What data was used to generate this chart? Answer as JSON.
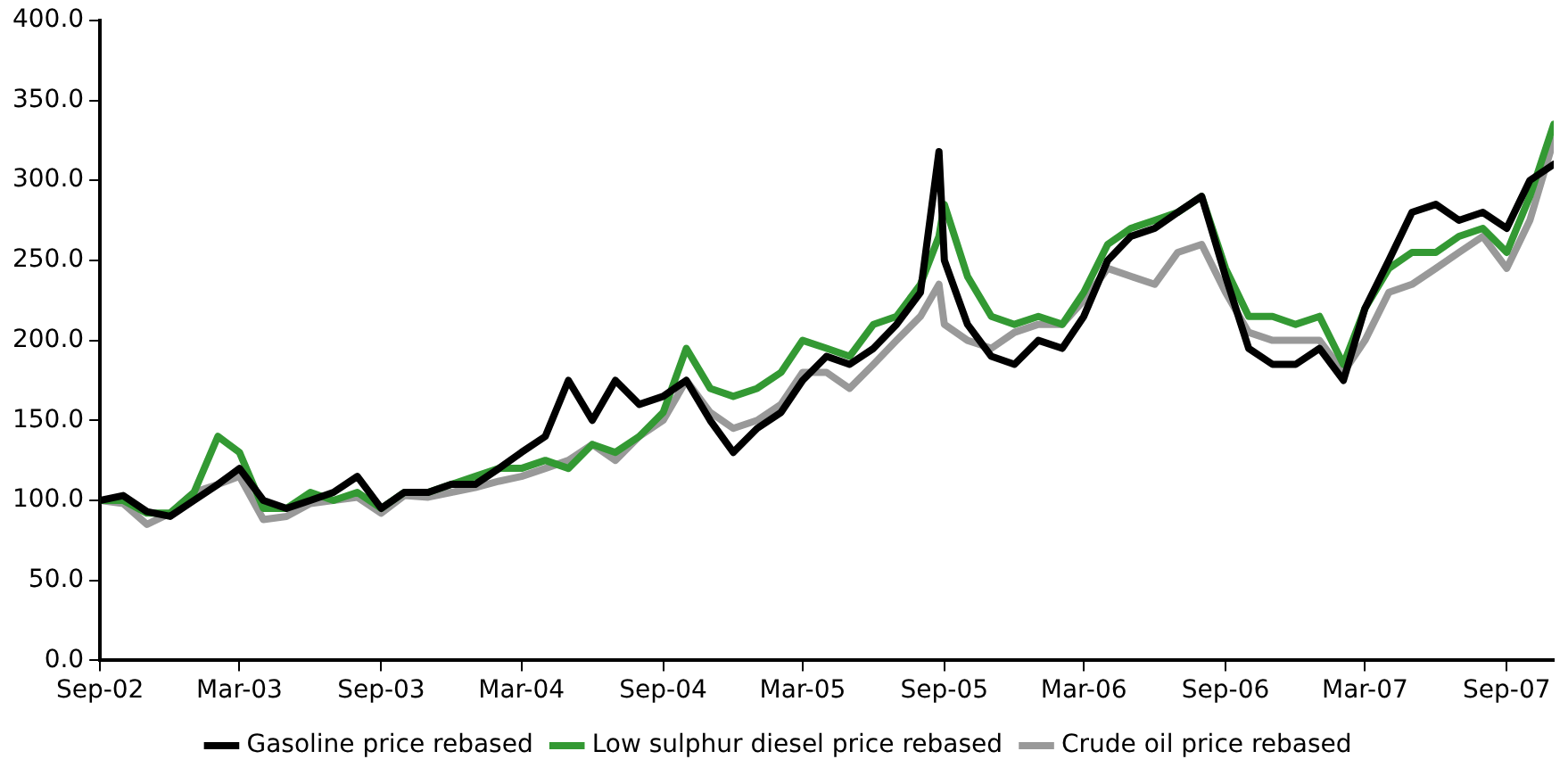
{
  "chart_data": {
    "type": "line",
    "x": [
      "2002-09-01",
      "2002-10-01",
      "2002-11-01",
      "2002-12-01",
      "2003-01-01",
      "2003-02-01",
      "2003-03-01",
      "2003-04-01",
      "2003-05-01",
      "2003-06-01",
      "2003-07-01",
      "2003-08-01",
      "2003-09-01",
      "2003-10-01",
      "2003-11-01",
      "2003-12-01",
      "2004-01-01",
      "2004-02-01",
      "2004-03-01",
      "2004-04-01",
      "2004-05-01",
      "2004-06-01",
      "2004-07-01",
      "2004-08-01",
      "2004-09-01",
      "2004-10-01",
      "2004-11-01",
      "2004-12-01",
      "2005-01-01",
      "2005-02-01",
      "2005-03-01",
      "2005-04-01",
      "2005-05-01",
      "2005-06-01",
      "2005-07-01",
      "2005-08-01",
      "2005-08-25",
      "2005-09-01",
      "2005-10-01",
      "2005-11-01",
      "2005-12-01",
      "2006-01-01",
      "2006-02-01",
      "2006-03-01",
      "2006-04-01",
      "2006-05-01",
      "2006-06-01",
      "2006-07-01",
      "2006-08-01",
      "2006-09-01",
      "2006-10-01",
      "2006-11-01",
      "2006-12-01",
      "2007-01-01",
      "2007-02-01",
      "2007-03-01",
      "2007-04-01",
      "2007-05-01",
      "2007-06-01",
      "2007-07-01",
      "2007-08-01",
      "2007-09-01",
      "2007-10-01",
      "2007-11-01"
    ],
    "series": [
      {
        "name": "Gasoline price rebased",
        "color": "#000000",
        "values": [
          100,
          103,
          93,
          90,
          100,
          110,
          120,
          100,
          95,
          100,
          105,
          115,
          95,
          105,
          105,
          110,
          110,
          120,
          130,
          140,
          175,
          150,
          175,
          160,
          165,
          175,
          150,
          130,
          145,
          155,
          175,
          190,
          185,
          195,
          210,
          230,
          318,
          250,
          210,
          190,
          185,
          200,
          195,
          215,
          250,
          265,
          270,
          280,
          290,
          240,
          195,
          185,
          185,
          195,
          175,
          220,
          250,
          280,
          285,
          275,
          280,
          270,
          300,
          310
        ]
      },
      {
        "name": "Low sulphur diesel price rebased",
        "color": "#339933",
        "values": [
          100,
          100,
          92,
          92,
          105,
          140,
          130,
          95,
          95,
          105,
          100,
          105,
          95,
          105,
          105,
          110,
          115,
          120,
          120,
          125,
          120,
          135,
          130,
          140,
          155,
          195,
          170,
          165,
          170,
          180,
          200,
          195,
          190,
          210,
          215,
          235,
          265,
          285,
          240,
          215,
          210,
          215,
          210,
          230,
          260,
          270,
          275,
          280,
          290,
          245,
          215,
          215,
          210,
          215,
          185,
          220,
          245,
          255,
          255,
          265,
          270,
          255,
          290,
          335
        ]
      },
      {
        "name": "Crude oil price rebased",
        "color": "#999999",
        "values": [
          100,
          98,
          85,
          92,
          105,
          110,
          115,
          88,
          90,
          98,
          100,
          102,
          92,
          103,
          102,
          105,
          108,
          112,
          115,
          120,
          125,
          135,
          125,
          140,
          150,
          175,
          155,
          145,
          150,
          160,
          180,
          180,
          170,
          185,
          200,
          215,
          235,
          210,
          200,
          195,
          205,
          210,
          210,
          225,
          245,
          240,
          235,
          255,
          260,
          230,
          205,
          200,
          200,
          200,
          180,
          200,
          230,
          235,
          245,
          255,
          265,
          245,
          275,
          325
        ]
      }
    ],
    "xlim": [
      "2002-09-01",
      "2007-11-01"
    ],
    "xticks": [
      {
        "value": "2002-09-01",
        "label": "Sep-02"
      },
      {
        "value": "2003-03-01",
        "label": "Mar-03"
      },
      {
        "value": "2003-09-01",
        "label": "Sep-03"
      },
      {
        "value": "2004-03-01",
        "label": "Mar-04"
      },
      {
        "value": "2004-09-01",
        "label": "Sep-04"
      },
      {
        "value": "2005-03-01",
        "label": "Mar-05"
      },
      {
        "value": "2005-09-01",
        "label": "Sep-05"
      },
      {
        "value": "2006-03-01",
        "label": "Mar-06"
      },
      {
        "value": "2006-09-01",
        "label": "Sep-06"
      },
      {
        "value": "2007-03-01",
        "label": "Mar-07"
      },
      {
        "value": "2007-09-01",
        "label": "Sep-07"
      }
    ],
    "ylim": [
      0,
      400
    ],
    "yticks": [
      {
        "value": 0,
        "label": "0.0"
      },
      {
        "value": 50,
        "label": "50.0"
      },
      {
        "value": 100,
        "label": "100.0"
      },
      {
        "value": 150,
        "label": "150.0"
      },
      {
        "value": 200,
        "label": "200.0"
      },
      {
        "value": 250,
        "label": "250.0"
      },
      {
        "value": 300,
        "label": "300.0"
      },
      {
        "value": 350,
        "label": "350.0"
      },
      {
        "value": 400,
        "label": "400.0"
      }
    ],
    "grid": false,
    "legend": "bottom",
    "marker": "none",
    "line_style": "solid"
  }
}
